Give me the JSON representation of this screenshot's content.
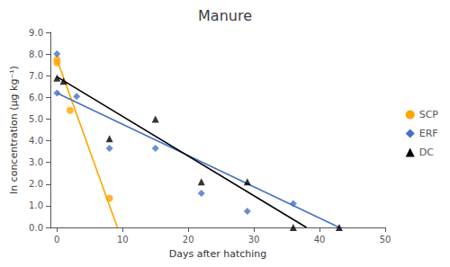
{
  "chart_data": {
    "type": "scatter",
    "title": "Manure",
    "xlabel": "Days after hatching",
    "ylabel": "ln concentration (μg kg⁻¹)",
    "xlim": [
      -1,
      50
    ],
    "ylim": [
      0.0,
      9.0
    ],
    "xticks": [
      0,
      10,
      20,
      30,
      40,
      50
    ],
    "yticks": [
      {
        "value": 0.0,
        "label": "0.0"
      },
      {
        "value": 1.0,
        "label": "1.0"
      },
      {
        "value": 2.0,
        "label": "2.0"
      },
      {
        "value": 3.0,
        "label": "3.0"
      },
      {
        "value": 4.0,
        "label": "4.0"
      },
      {
        "value": 5.0,
        "label": "5.0"
      },
      {
        "value": 6.0,
        "label": "6.0"
      },
      {
        "value": 7.0,
        "label": "7.0"
      },
      {
        "value": 8.0,
        "label": "8.0"
      },
      {
        "value": 9.0,
        "label": "9.0"
      }
    ],
    "grid": false,
    "legend": "right",
    "series": [
      {
        "name": "SCP",
        "type": "line",
        "line_style": "solid",
        "color": "#FFA500",
        "x": [
          0,
          9.2
        ],
        "values": [
          7.75,
          0.0
        ]
      },
      {
        "name": "ERF",
        "type": "line",
        "line_style": "solid",
        "color": "#4472C4",
        "x": [
          0,
          43
        ],
        "values": [
          6.2,
          0.0
        ]
      },
      {
        "name": "DC",
        "type": "line",
        "line_style": "solid",
        "color": "#000000",
        "x": [
          0,
          38
        ],
        "values": [
          6.95,
          0.0
        ]
      },
      {
        "name": "SCP",
        "type": "scatter",
        "marker": "circle",
        "color": "#FFA500",
        "x": [
          0,
          0,
          2,
          8
        ],
        "values": [
          7.6,
          7.75,
          5.4,
          1.35
        ]
      },
      {
        "name": "ERF",
        "type": "scatter",
        "marker": "diamond",
        "color": "#4472C4",
        "x": [
          0,
          0,
          3,
          8,
          15,
          22,
          29,
          36
        ],
        "values": [
          8.0,
          6.2,
          6.05,
          3.65,
          3.65,
          1.58,
          0.75,
          1.1
        ]
      },
      {
        "name": "DC",
        "type": "scatter",
        "marker": "triangle",
        "color": "#000000",
        "x": [
          0,
          1,
          8,
          15,
          22,
          29,
          36,
          43
        ],
        "values": [
          6.9,
          6.75,
          4.1,
          5.0,
          2.1,
          2.1,
          0.0,
          0.0
        ]
      }
    ]
  }
}
